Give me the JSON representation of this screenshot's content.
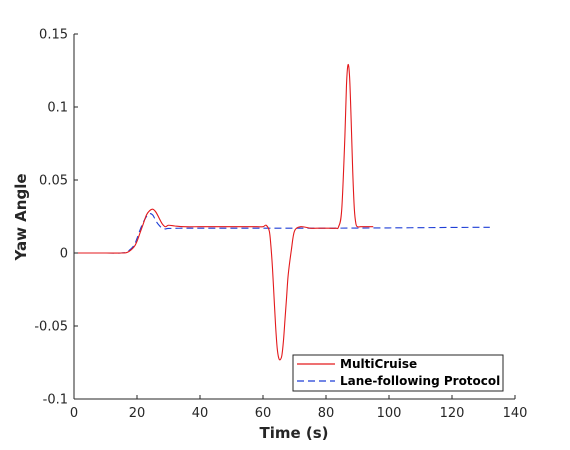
{
  "chart_data": {
    "type": "line",
    "xlabel": "Time (s)",
    "ylabel": "Yaw Angle",
    "xlim": [
      0,
      140
    ],
    "ylim": [
      -0.1,
      0.15
    ],
    "xticks": [
      0,
      20,
      40,
      60,
      80,
      100,
      120,
      140
    ],
    "yticks": [
      -0.1,
      -0.05,
      0,
      0.05,
      0.1,
      0.15
    ],
    "xtick_labels": [
      "0",
      "20",
      "40",
      "60",
      "80",
      "100",
      "120",
      "140"
    ],
    "ytick_labels": [
      "-0.1",
      "-0.05",
      "0",
      "0.05",
      "0.1",
      "0.15"
    ],
    "grid": false,
    "legend_position": "bottom-right",
    "series": [
      {
        "name": "MultiCruise",
        "color": "#e31a1c",
        "style": "solid",
        "x": [
          0,
          10,
          15,
          17,
          19,
          20,
          21,
          22,
          23,
          24,
          25,
          26,
          27,
          28,
          29,
          30,
          32,
          35,
          40,
          45,
          50,
          55,
          58,
          60,
          61,
          62,
          62.5,
          63,
          63.5,
          64,
          64.5,
          65,
          65.5,
          66,
          66.5,
          67,
          67.5,
          68,
          69,
          70,
          72,
          75,
          78,
          80,
          83,
          84,
          85,
          86,
          86.5,
          87,
          87.5,
          88,
          88.5,
          89,
          89.5,
          90,
          91,
          92,
          95
        ],
        "y": [
          0,
          0,
          0,
          0.0005,
          0.004,
          0.008,
          0.014,
          0.02,
          0.026,
          0.029,
          0.03,
          0.028,
          0.024,
          0.02,
          0.018,
          0.019,
          0.0185,
          0.018,
          0.018,
          0.018,
          0.018,
          0.018,
          0.018,
          0.018,
          0.019,
          0.015,
          0.005,
          -0.01,
          -0.03,
          -0.05,
          -0.065,
          -0.072,
          -0.073,
          -0.07,
          -0.06,
          -0.045,
          -0.03,
          -0.015,
          0.002,
          0.015,
          0.018,
          0.017,
          0.017,
          0.017,
          0.017,
          0.018,
          0.03,
          0.08,
          0.115,
          0.129,
          0.12,
          0.09,
          0.055,
          0.03,
          0.02,
          0.018,
          0.018,
          0.018,
          0.018
        ]
      },
      {
        "name": "Lane-following Protocol",
        "color": "#1f3fd6",
        "style": "dashed",
        "x": [
          0,
          10,
          15,
          17,
          19,
          20,
          21,
          22,
          23,
          24,
          25,
          26,
          27,
          28,
          29,
          30,
          35,
          40,
          60,
          80,
          100,
          120,
          132
        ],
        "y": [
          0,
          0,
          0,
          0.001,
          0.005,
          0.01,
          0.016,
          0.021,
          0.025,
          0.027,
          0.026,
          0.022,
          0.019,
          0.017,
          0.0165,
          0.0168,
          0.017,
          0.017,
          0.017,
          0.017,
          0.0172,
          0.0175,
          0.0176
        ]
      }
    ]
  }
}
